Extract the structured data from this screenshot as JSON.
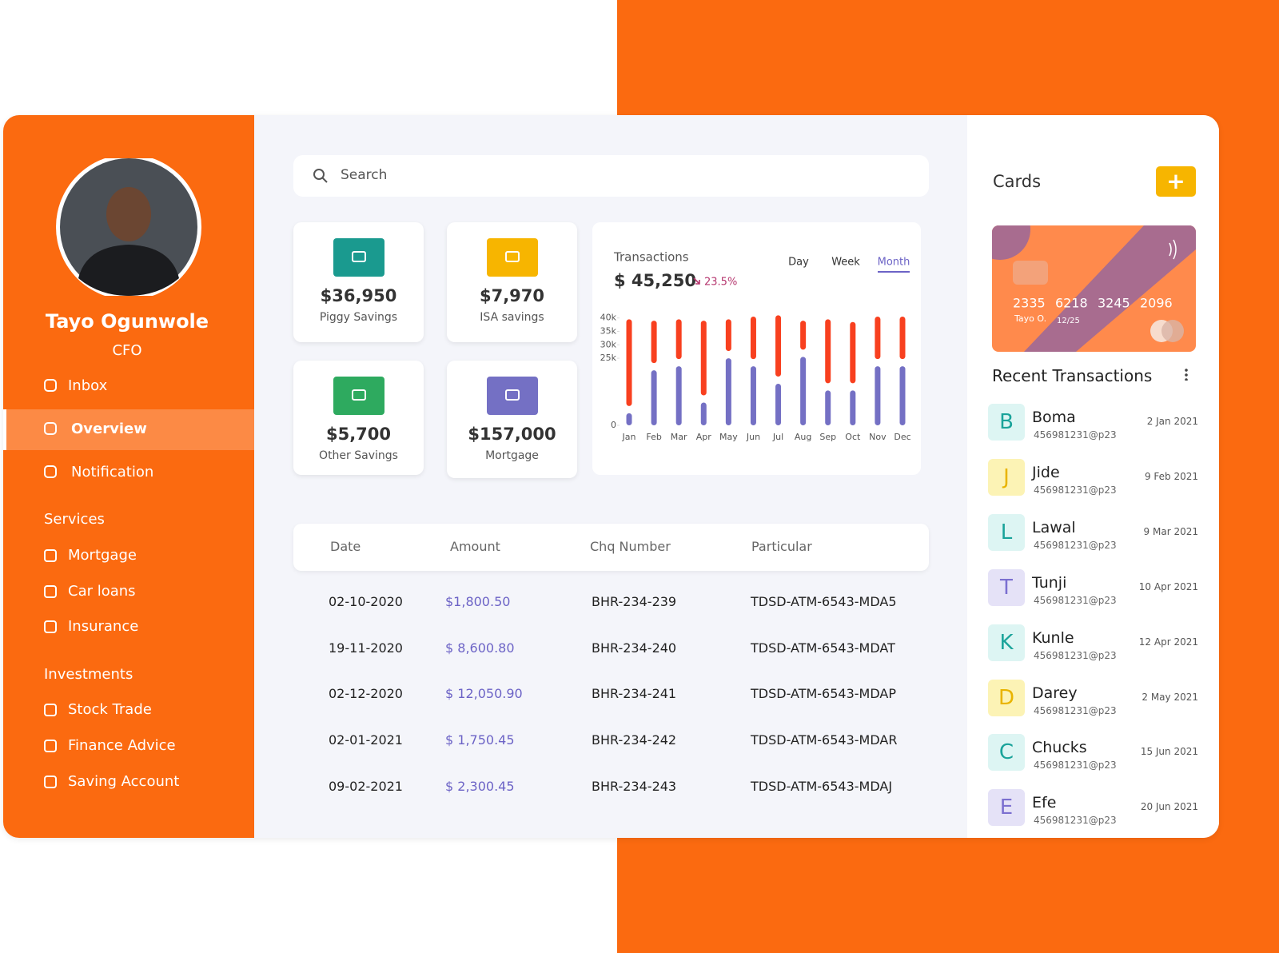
{
  "sidebar": {
    "name": "Tayo Ogunwole",
    "role": "CFO",
    "nav": [
      "Inbox",
      "Overview",
      "Notification"
    ],
    "active_nav": 1,
    "sections": [
      {
        "title": "Services",
        "items": [
          "Mortgage",
          "Car loans",
          "Insurance"
        ]
      },
      {
        "title": "Investments",
        "items": [
          "Stock Trade",
          "Finance Advice",
          "Saving Account"
        ]
      }
    ]
  },
  "search": {
    "placeholder": "Search"
  },
  "stats": [
    {
      "value": "$36,950",
      "label": "Piggy Savings",
      "color": "#1a9a8f"
    },
    {
      "value": "$7,970",
      "label": "ISA savings",
      "color": "#f7b500"
    },
    {
      "value": "$5,700",
      "label": "Other  Savings",
      "color": "#2eaa5f"
    },
    {
      "value": "$157,000",
      "label": "Mortgage",
      "color": "#7470c4"
    }
  ],
  "chart_data": {
    "type": "bar",
    "stacked": true,
    "title": "Transactions",
    "headline": "$ 45,250",
    "change": "23.5%",
    "periods": [
      "Day",
      "Week",
      "Month"
    ],
    "active_period": 2,
    "categories": [
      "Jan",
      "Feb",
      "Mar",
      "Apr",
      "May",
      "Jun",
      "Jul",
      "Aug",
      "Sep",
      "Oct",
      "Nov",
      "Dec"
    ],
    "series": [
      {
        "color": "#7470c4",
        "values": [
          4500,
          20500,
          22000,
          8500,
          25000,
          22000,
          15500,
          25500,
          13000,
          13000,
          22000,
          22000
        ]
      },
      {
        "color": "#f8401f",
        "values": [
          35000,
          18500,
          17500,
          30500,
          14500,
          18500,
          25500,
          13500,
          26500,
          25500,
          18500,
          18500
        ]
      }
    ],
    "ylim": [
      0,
      42000
    ],
    "yticks": [
      {
        "value": 0,
        "label": "0"
      },
      {
        "value": 25000,
        "label": "25k"
      },
      {
        "value": 30000,
        "label": "30k"
      },
      {
        "value": 35000,
        "label": "35k"
      },
      {
        "value": 40000,
        "label": "40k"
      }
    ]
  },
  "table": {
    "columns": [
      "Date",
      "Amount",
      "Chq Number",
      "Particular"
    ],
    "rows": [
      [
        "02-10-2020",
        "$1,800.50",
        "BHR-234-239",
        "TDSD-ATM-6543-MDA5"
      ],
      [
        "19-11-2020",
        "$ 8,600.80",
        "BHR-234-240",
        "TDSD-ATM-6543-MDAT"
      ],
      [
        "02-12-2020",
        "$ 12,050.90",
        "BHR-234-241",
        "TDSD-ATM-6543-MDAP"
      ],
      [
        "02-01-2021",
        "$ 1,750.45",
        "BHR-234-242",
        "TDSD-ATM-6543-MDAR"
      ],
      [
        "09-02-2021",
        "$ 2,300.45",
        "BHR-234-243",
        "TDSD-ATM-6543-MDAJ"
      ]
    ]
  },
  "cards": {
    "title": "Cards",
    "add": "+",
    "card": {
      "number": [
        "2335",
        "6218",
        "3245",
        "2096"
      ],
      "holder": "Tayo O.",
      "expiry": "12/25"
    }
  },
  "recent": {
    "title": "Recent Transactions",
    "items": [
      {
        "initial": "B",
        "name": "Boma",
        "account": "456981231@p23",
        "date": "2 Jan 2021"
      },
      {
        "initial": "J",
        "name": "Jide",
        "account": "456981231@p23",
        "date": "9 Feb 2021"
      },
      {
        "initial": "L",
        "name": "Lawal",
        "account": "456981231@p23",
        "date": "9 Mar 2021"
      },
      {
        "initial": "T",
        "name": "Tunji",
        "account": "456981231@p23",
        "date": "10  Apr 2021"
      },
      {
        "initial": "K",
        "name": "Kunle",
        "account": "456981231@p23",
        "date": "12 Apr 2021"
      },
      {
        "initial": "D",
        "name": "Darey",
        "account": "456981231@p23",
        "date": "2 May 2021"
      },
      {
        "initial": "C",
        "name": "Chucks",
        "account": "456981231@p23",
        "date": "15 Jun 2021"
      },
      {
        "initial": "E",
        "name": "Efe",
        "account": "456981231@p23",
        "date": "20 Jun 2021"
      }
    ]
  }
}
